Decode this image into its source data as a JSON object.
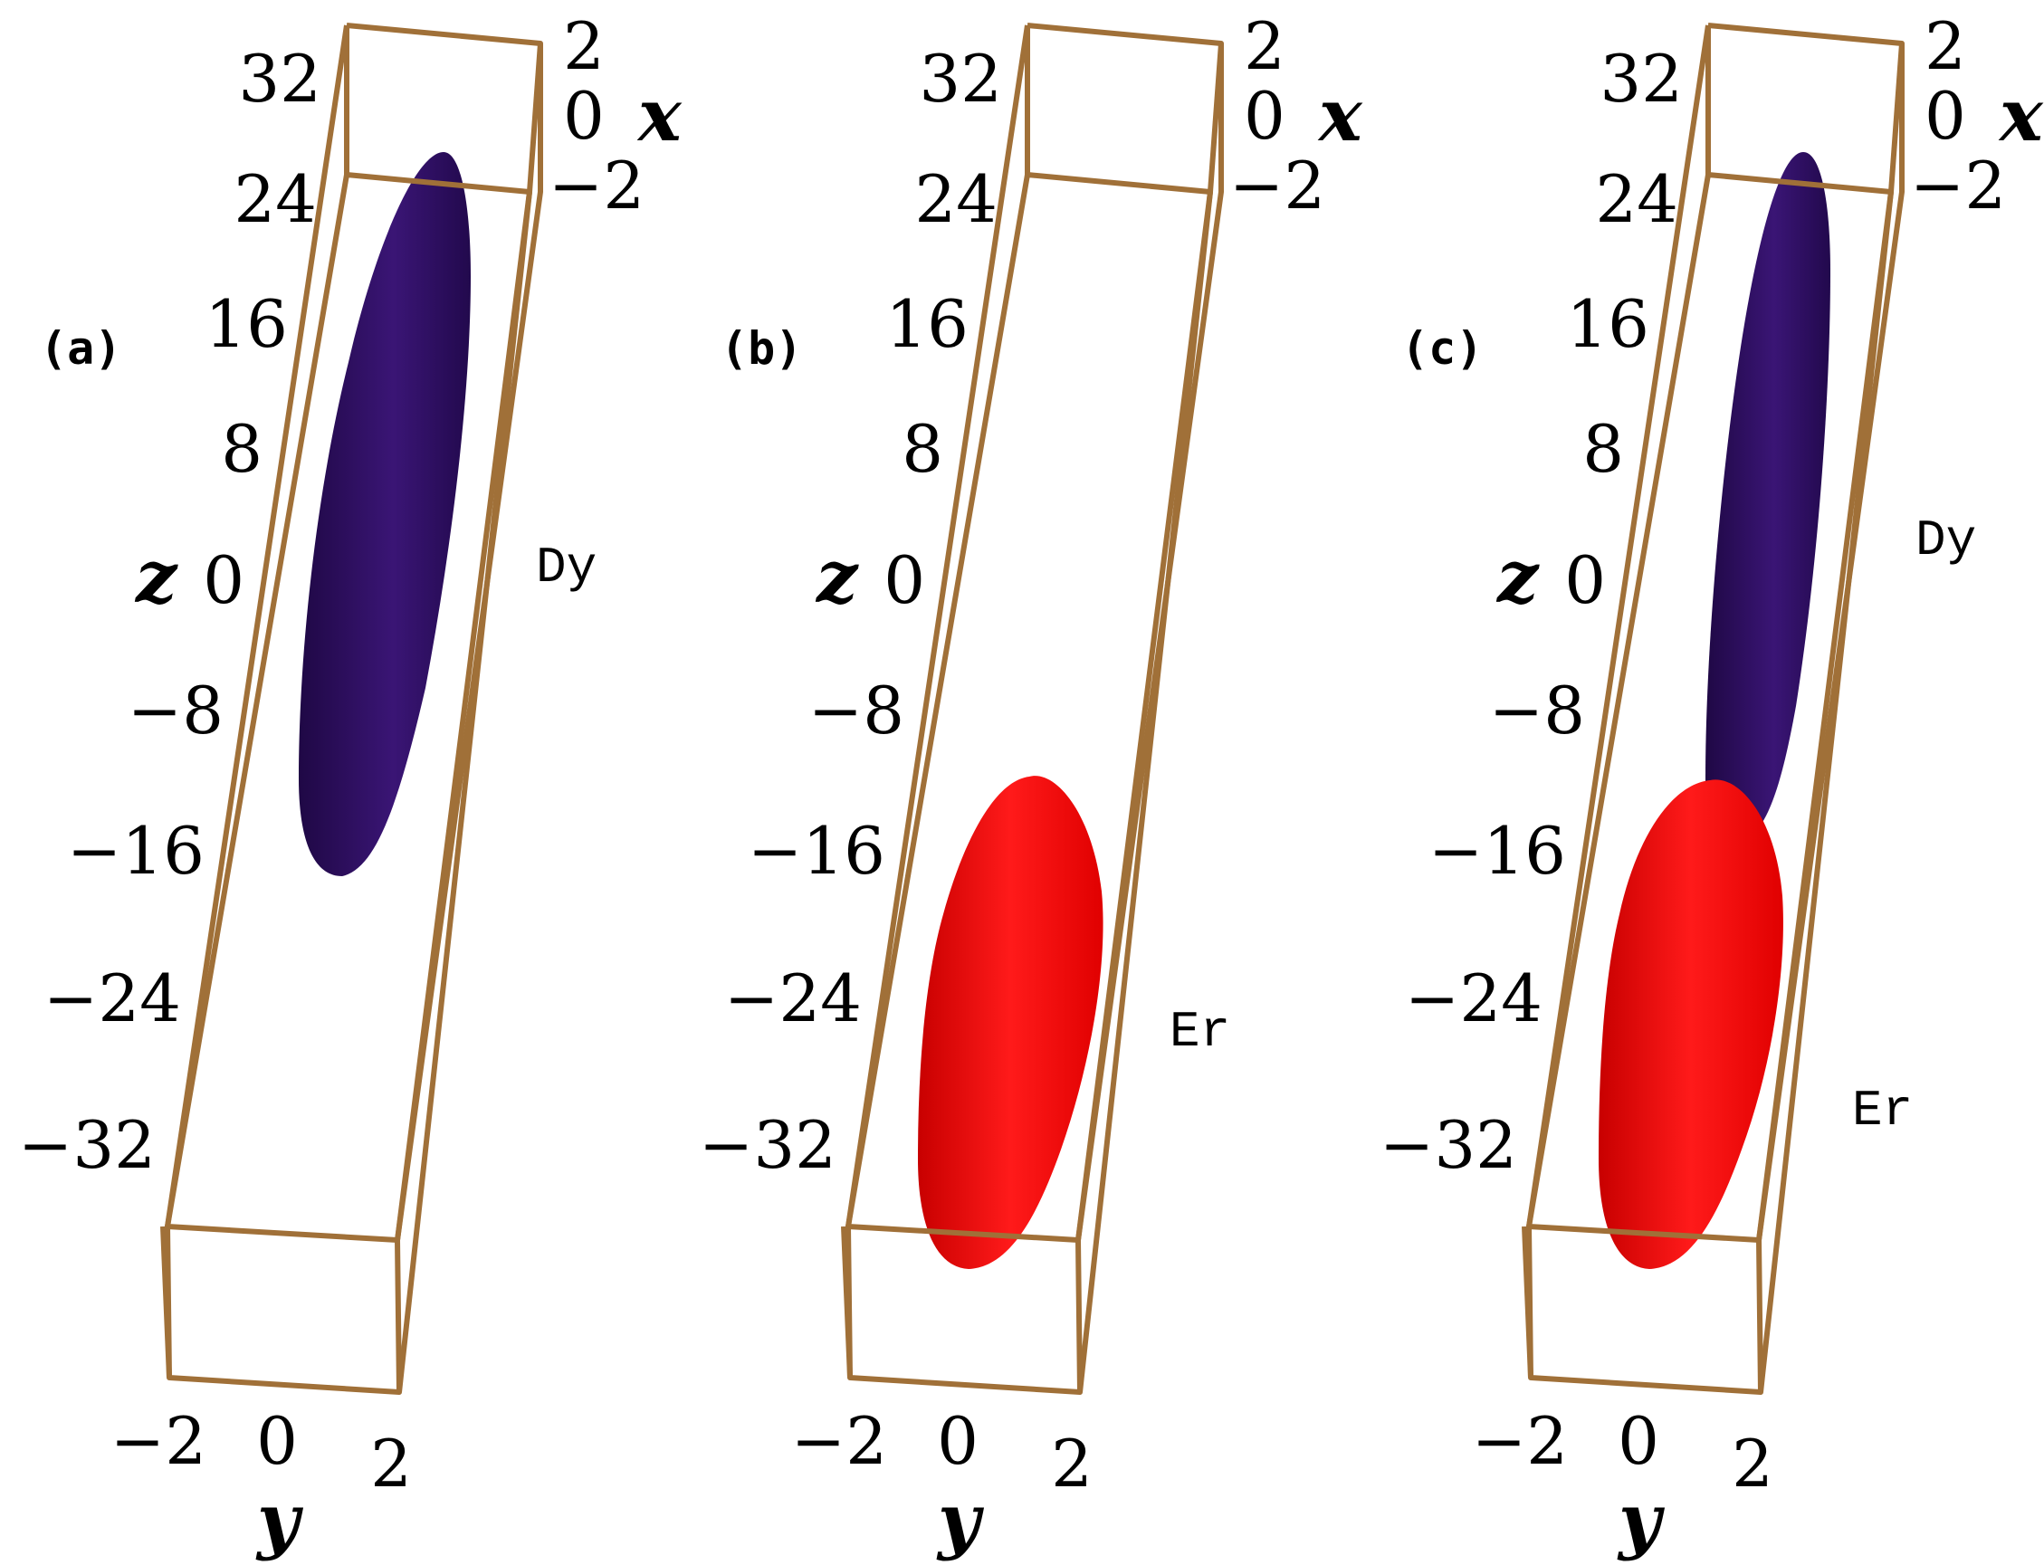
{
  "colors": {
    "box": "#a07038",
    "dy": "#2e0f63",
    "er": "#ff0000",
    "background": "#ffffff"
  },
  "axes": {
    "x_label": "x",
    "y_label": "y",
    "z_label": "z",
    "x_ticks": [
      "2",
      "0",
      "−2"
    ],
    "y_ticks": [
      "−2",
      "0",
      "2"
    ],
    "z_ticks": [
      "32",
      "24",
      "16",
      "8",
      "0",
      "−8",
      "−16",
      "−24",
      "−32"
    ]
  },
  "panels": [
    {
      "label": "(a)",
      "species": [
        "Dy"
      ]
    },
    {
      "label": "(b)",
      "species": [
        "Er"
      ]
    },
    {
      "label": "(c)",
      "species": [
        "Dy",
        "Er"
      ]
    }
  ]
}
